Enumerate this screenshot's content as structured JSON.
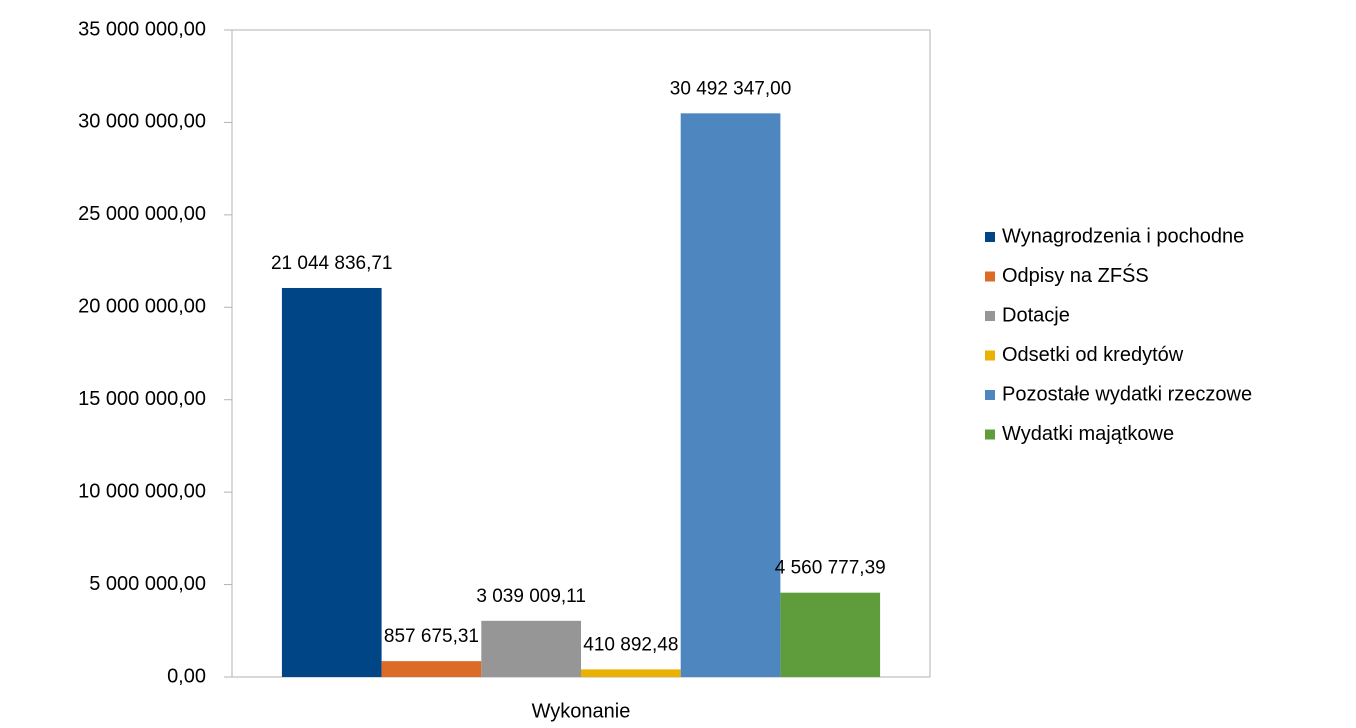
{
  "chart_data": {
    "type": "bar",
    "categories": [
      "Wykonanie"
    ],
    "series": [
      {
        "name": "Wynagrodzenia i pochodne",
        "color": "#004586",
        "values": [
          21044836.71
        ],
        "value_labels": [
          "21 044 836,71"
        ]
      },
      {
        "name": "Odpisy na ZFŚS",
        "color": "#dd6b28",
        "values": [
          857675.31
        ],
        "value_labels": [
          "857 675,31"
        ]
      },
      {
        "name": "Dotacje",
        "color": "#969696",
        "values": [
          3039009.11
        ],
        "value_labels": [
          "3 039 009,11"
        ]
      },
      {
        "name": "Odsetki od kredytów",
        "color": "#eab100",
        "values": [
          410892.48
        ],
        "value_labels": [
          "410 892,48"
        ]
      },
      {
        "name": "Pozostałe wydatki rzeczowe",
        "color": "#4e87bf",
        "values": [
          30492347.0
        ],
        "value_labels": [
          "30 492 347,00"
        ]
      },
      {
        "name": "Wydatki majątkowe",
        "color": "#5f9c3c",
        "values": [
          4560777.39
        ],
        "value_labels": [
          "4 560 777,39"
        ]
      }
    ],
    "ylim": [
      0,
      35000000
    ],
    "yticks": [
      {
        "value": 0,
        "label": "0,00"
      },
      {
        "value": 5000000,
        "label": "5 000 000,00"
      },
      {
        "value": 10000000,
        "label": "10 000 000,00"
      },
      {
        "value": 15000000,
        "label": "15 000 000,00"
      },
      {
        "value": 20000000,
        "label": "20 000 000,00"
      },
      {
        "value": 25000000,
        "label": "25 000 000,00"
      },
      {
        "value": 30000000,
        "label": "30 000 000,00"
      },
      {
        "value": 35000000,
        "label": "35 000 000,00"
      }
    ],
    "grid": false,
    "legend": "right"
  }
}
